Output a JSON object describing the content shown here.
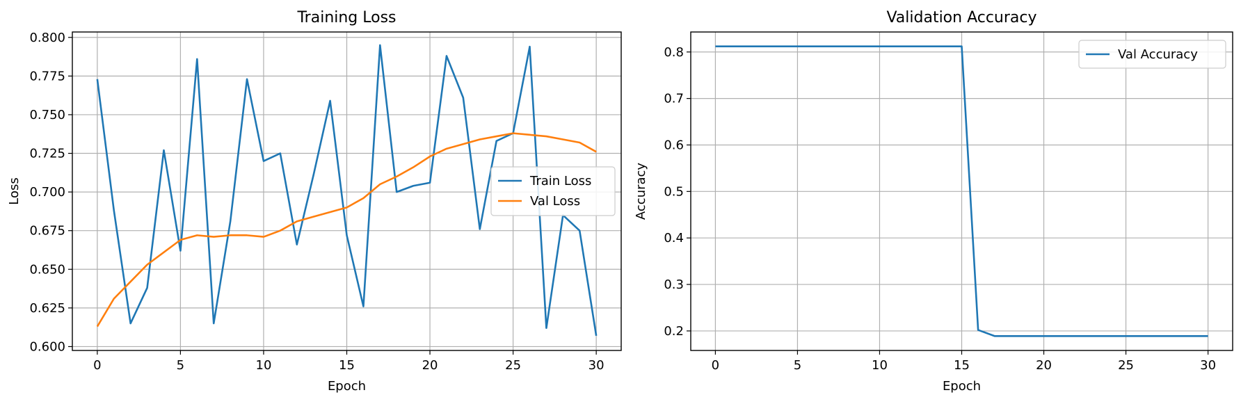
{
  "chart_data": [
    {
      "type": "line",
      "title": "Training Loss",
      "xlabel": "Epoch",
      "ylabel": "Loss",
      "xlim": [
        -1.5,
        31.5
      ],
      "ylim": [
        0.5975,
        0.8035
      ],
      "xticks": [
        0,
        5,
        10,
        15,
        20,
        25,
        30
      ],
      "xtick_labels": [
        "0",
        "5",
        "10",
        "15",
        "20",
        "25",
        "30"
      ],
      "yticks": [
        0.6,
        0.625,
        0.65,
        0.675,
        0.7,
        0.725,
        0.75,
        0.775,
        0.8
      ],
      "ytick_labels": [
        "0.600",
        "0.625",
        "0.650",
        "0.675",
        "0.700",
        "0.725",
        "0.750",
        "0.775",
        "0.800"
      ],
      "grid": true,
      "legend": "center-right",
      "x": [
        0,
        1,
        2,
        3,
        4,
        5,
        6,
        7,
        8,
        9,
        10,
        11,
        12,
        13,
        14,
        15,
        16,
        17,
        18,
        19,
        20,
        21,
        22,
        23,
        24,
        25,
        26,
        27,
        28,
        29,
        30
      ],
      "series": [
        {
          "name": "Train Loss",
          "color": "#1f77b4",
          "values": [
            0.773,
            0.688,
            0.615,
            0.638,
            0.727,
            0.662,
            0.786,
            0.615,
            0.681,
            0.773,
            0.72,
            0.725,
            0.666,
            0.711,
            0.759,
            0.672,
            0.626,
            0.795,
            0.7,
            0.704,
            0.706,
            0.788,
            0.761,
            0.676,
            0.733,
            0.738,
            0.794,
            0.612,
            0.685,
            0.675,
            0.607
          ]
        },
        {
          "name": "Val Loss",
          "color": "#ff7f0e",
          "values": [
            0.613,
            0.631,
            0.642,
            0.653,
            0.661,
            0.669,
            0.672,
            0.671,
            0.672,
            0.672,
            0.671,
            0.675,
            0.681,
            0.684,
            0.687,
            0.69,
            0.696,
            0.705,
            0.71,
            0.716,
            0.723,
            0.728,
            0.731,
            0.734,
            0.736,
            0.738,
            0.737,
            0.736,
            0.734,
            0.732,
            0.726
          ]
        }
      ]
    },
    {
      "type": "line",
      "title": "Validation Accuracy",
      "xlabel": "Epoch",
      "ylabel": "Accuracy",
      "xlim": [
        -1.5,
        31.5
      ],
      "ylim": [
        0.158,
        0.843
      ],
      "xticks": [
        0,
        5,
        10,
        15,
        20,
        25,
        30
      ],
      "xtick_labels": [
        "0",
        "5",
        "10",
        "15",
        "20",
        "25",
        "30"
      ],
      "yticks": [
        0.2,
        0.3,
        0.4,
        0.5,
        0.6,
        0.7,
        0.8
      ],
      "ytick_labels": [
        "0.2",
        "0.3",
        "0.4",
        "0.5",
        "0.6",
        "0.7",
        "0.8"
      ],
      "grid": true,
      "legend": "top-right",
      "x": [
        0,
        1,
        2,
        3,
        4,
        5,
        6,
        7,
        8,
        9,
        10,
        11,
        12,
        13,
        14,
        15,
        16,
        17,
        18,
        19,
        20,
        21,
        22,
        23,
        24,
        25,
        26,
        27,
        28,
        29,
        30
      ],
      "series": [
        {
          "name": "Val Accuracy",
          "color": "#1f77b4",
          "values": [
            0.812,
            0.812,
            0.812,
            0.812,
            0.812,
            0.812,
            0.812,
            0.812,
            0.812,
            0.812,
            0.812,
            0.812,
            0.812,
            0.812,
            0.812,
            0.812,
            0.202,
            0.189,
            0.189,
            0.189,
            0.189,
            0.189,
            0.189,
            0.189,
            0.189,
            0.189,
            0.189,
            0.189,
            0.189,
            0.189,
            0.189
          ]
        }
      ]
    }
  ]
}
